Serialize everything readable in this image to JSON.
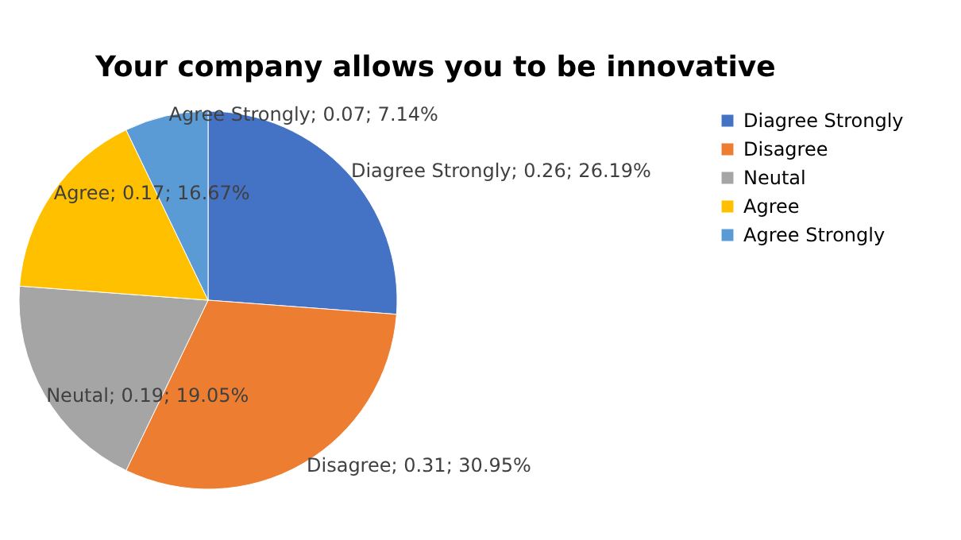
{
  "chart_data": {
    "type": "pie",
    "title": "Your company allows you to be innovative",
    "categories": [
      "Diagree Strongly",
      "Disagree",
      "Neutal",
      "Agree",
      "Agree Strongly"
    ],
    "values": [
      26.19,
      30.95,
      19.05,
      16.67,
      7.14
    ],
    "value_labels": [
      "Diagree Strongly; 0.26; 26.19%",
      "Disagree; 0.31; 30.95%",
      "Neutal; 0.19; 19.05%",
      "Agree; 0.17; 16.67%",
      "Agree Strongly; 0.07; 7.14%"
    ],
    "colors": [
      "#4472c4",
      "#ed7d31",
      "#a5a5a5",
      "#ffc000",
      "#5b9bd5"
    ],
    "legend": "right"
  }
}
